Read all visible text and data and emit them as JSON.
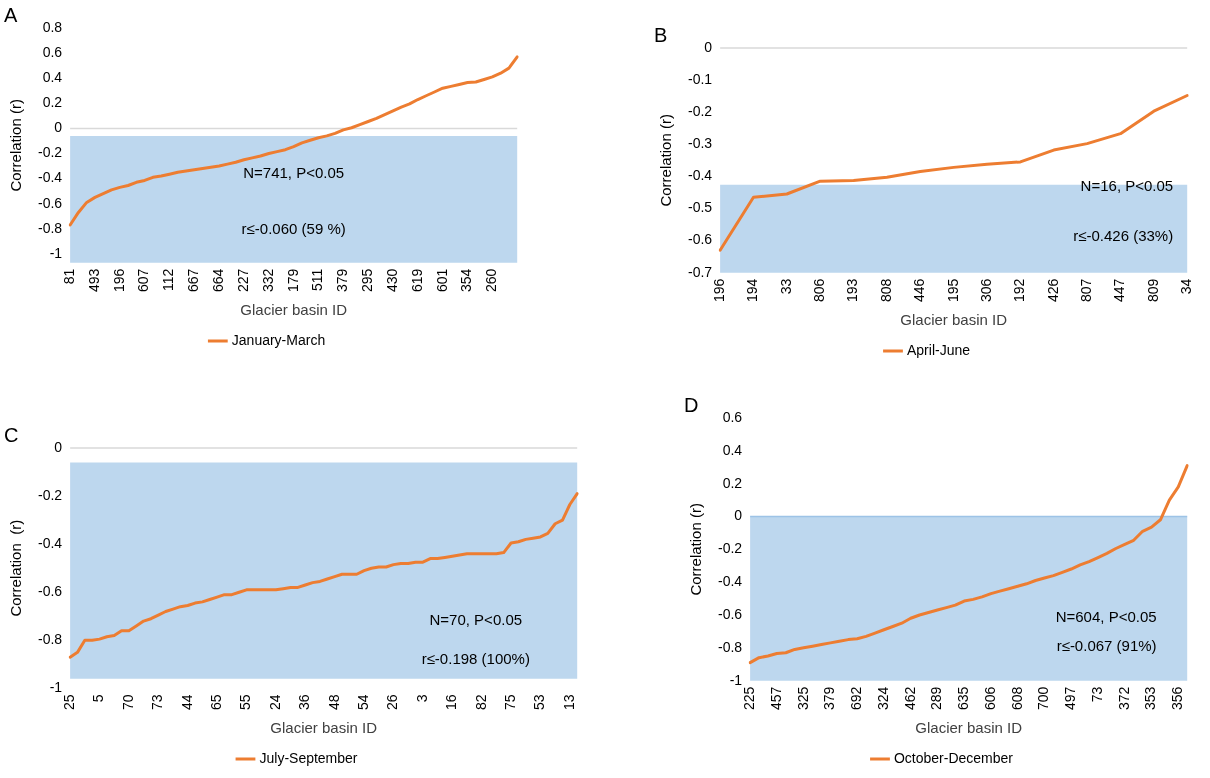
{
  "chart_data": [
    {
      "type": "line",
      "title": "A",
      "xlabel": "Glacier basin ID",
      "ylabel": "Correlation (r)",
      "categories": [
        "81",
        null,
        null,
        "493",
        null,
        null,
        "196",
        null,
        null,
        "607",
        null,
        null,
        "112",
        null,
        null,
        "667",
        null,
        null,
        "664",
        null,
        null,
        "227",
        null,
        null,
        "332",
        null,
        null,
        "179",
        null,
        null,
        "511",
        null,
        null,
        "379",
        null,
        null,
        "295",
        null,
        null,
        "430",
        null,
        null,
        "619",
        null,
        null,
        "601",
        null,
        null,
        "354",
        null,
        null,
        "260",
        null,
        null,
        null
      ],
      "series": [
        {
          "name": "January-March",
          "color": "#ed7d31",
          "values": [
            -0.77,
            -0.67,
            -0.59,
            -0.55,
            -0.52,
            -0.49,
            -0.47,
            -0.455,
            -0.43,
            -0.415,
            -0.39,
            -0.38,
            -0.365,
            -0.35,
            -0.34,
            -0.33,
            -0.32,
            -0.31,
            -0.3,
            -0.285,
            -0.27,
            -0.25,
            -0.235,
            -0.22,
            -0.2,
            -0.185,
            -0.17,
            -0.145,
            -0.115,
            -0.095,
            -0.075,
            -0.06,
            -0.04,
            -0.012,
            0.005,
            0.03,
            0.055,
            0.08,
            0.11,
            0.14,
            0.17,
            0.195,
            0.23,
            0.26,
            0.29,
            0.32,
            0.335,
            0.35,
            0.365,
            0.37,
            0.39,
            0.41,
            0.44,
            0.48,
            0.57
          ]
        }
      ],
      "ylim": [
        -1.07,
        0.8
      ],
      "yticks": [
        -1,
        -0.8,
        -0.6,
        -0.4,
        -0.2,
        0,
        0.2,
        0.4,
        0.6,
        0.8
      ],
      "bands": [
        {
          "axis": "y",
          "from": -1.07,
          "to": -0.06,
          "color": "#bdd7ee"
        }
      ],
      "ref_lines": [
        {
          "axis": "y",
          "value": 0,
          "color": "#d9d9d9"
        }
      ],
      "annotations": [
        "N=741, P<0.05",
        "r≤-0.060 (59 %)"
      ],
      "legend": "bottom",
      "grid": false,
      "marker": "none"
    },
    {
      "type": "line",
      "title": "B",
      "xlabel": "Glacier basin ID",
      "ylabel": "Correlation (r)",
      "categories": [
        "196",
        "194",
        "33",
        "806",
        "193",
        "808",
        "446",
        "195",
        "306",
        "192",
        "426",
        "807",
        "447",
        "809",
        "34"
      ],
      "series": [
        {
          "name": "April-June",
          "color": "#ed7d31",
          "values": [
            -0.63,
            -0.465,
            -0.455,
            -0.415,
            -0.413,
            -0.403,
            -0.385,
            -0.372,
            -0.362,
            -0.355,
            -0.318,
            -0.298,
            -0.267,
            -0.197,
            -0.148
          ]
        }
      ],
      "ylim": [
        -0.7,
        0
      ],
      "yticks": [
        -0.7,
        -0.6,
        -0.5,
        -0.4,
        -0.3,
        -0.2,
        -0.1,
        0
      ],
      "bands": [
        {
          "axis": "y",
          "from": -0.7,
          "to": -0.426,
          "color": "#bdd7ee"
        }
      ],
      "ref_lines": [
        {
          "axis": "y",
          "value": 0,
          "color": "#d9d9d9"
        }
      ],
      "annotations": [
        "N=16, P<0.05",
        "r≤-0.426 (33%)"
      ],
      "legend": "bottom",
      "grid": false,
      "marker": "none"
    },
    {
      "type": "line",
      "title": "C",
      "xlabel": "Glacier basin ID",
      "ylabel": "Correlation  (r)",
      "categories": [
        "25",
        null,
        null,
        null,
        "5",
        null,
        null,
        null,
        "70",
        null,
        null,
        null,
        "73",
        null,
        null,
        null,
        "44",
        null,
        null,
        null,
        "65",
        null,
        null,
        null,
        "55",
        null,
        null,
        null,
        "24",
        null,
        null,
        null,
        "36",
        null,
        null,
        null,
        "48",
        null,
        null,
        null,
        "54",
        null,
        null,
        null,
        "26",
        null,
        null,
        null,
        "3",
        null,
        null,
        null,
        "16",
        null,
        null,
        null,
        "82",
        null,
        null,
        null,
        "75",
        null,
        null,
        null,
        "53",
        null,
        null,
        null,
        "13",
        null
      ],
      "series": [
        {
          "name": "July-September",
          "color": "#ed7d31",
          "values": [
            -0.87,
            -0.85,
            -0.8,
            -0.8,
            -0.795,
            -0.785,
            -0.78,
            -0.76,
            -0.76,
            -0.74,
            -0.72,
            -0.71,
            -0.695,
            -0.68,
            -0.67,
            -0.66,
            -0.655,
            -0.645,
            -0.64,
            -0.63,
            -0.62,
            -0.61,
            -0.61,
            -0.6,
            -0.59,
            -0.59,
            -0.59,
            -0.59,
            -0.59,
            -0.585,
            -0.58,
            -0.58,
            -0.57,
            -0.56,
            -0.555,
            -0.545,
            -0.535,
            -0.525,
            -0.525,
            -0.525,
            -0.51,
            -0.5,
            -0.495,
            -0.495,
            -0.485,
            -0.48,
            -0.48,
            -0.475,
            -0.475,
            -0.46,
            -0.46,
            -0.455,
            -0.45,
            -0.445,
            -0.44,
            -0.44,
            -0.44,
            -0.44,
            -0.44,
            -0.435,
            -0.395,
            -0.39,
            -0.38,
            -0.375,
            -0.37,
            -0.355,
            -0.315,
            -0.3,
            -0.235,
            -0.19
          ]
        }
      ],
      "ylim": [
        -1,
        0
      ],
      "yticks": [
        -1,
        -0.8,
        -0.6,
        -0.4,
        -0.2,
        0
      ],
      "bands": [
        {
          "axis": "y",
          "from": -0.96,
          "to": -0.06,
          "color": "#bdd7ee"
        }
      ],
      "ref_lines": [
        {
          "axis": "y",
          "value": 0,
          "color": "#d9d9d9"
        }
      ],
      "annotations": [
        "N=70, P<0.05",
        "r≤-0.198 (100%)"
      ],
      "legend": "bottom",
      "grid": false,
      "marker": "none"
    },
    {
      "type": "line",
      "title": "D",
      "xlabel": "Glacier basin ID",
      "ylabel": "Correlation (r)",
      "categories": [
        "225",
        null,
        null,
        "457",
        null,
        null,
        "325",
        null,
        null,
        "379",
        null,
        null,
        "692",
        null,
        null,
        "324",
        null,
        null,
        "462",
        null,
        null,
        "289",
        null,
        null,
        "635",
        null,
        null,
        "606",
        null,
        null,
        "608",
        null,
        null,
        "700",
        null,
        null,
        "497",
        null,
        null,
        "73",
        null,
        null,
        "372",
        null,
        null,
        "353",
        null,
        null,
        "356",
        null
      ],
      "series": [
        {
          "name": "October-December",
          "color": "#ed7d31",
          "values": [
            -0.89,
            -0.86,
            -0.85,
            -0.835,
            -0.83,
            -0.81,
            -0.8,
            -0.79,
            -0.78,
            -0.77,
            -0.76,
            -0.75,
            -0.745,
            -0.73,
            -0.71,
            -0.69,
            -0.67,
            -0.65,
            -0.62,
            -0.6,
            -0.585,
            -0.57,
            -0.555,
            -0.54,
            -0.515,
            -0.505,
            -0.49,
            -0.47,
            -0.455,
            -0.44,
            -0.425,
            -0.41,
            -0.39,
            -0.375,
            -0.36,
            -0.34,
            -0.32,
            -0.295,
            -0.275,
            -0.25,
            -0.225,
            -0.195,
            -0.17,
            -0.145,
            -0.09,
            -0.065,
            -0.02,
            0.1,
            0.18,
            0.31
          ]
        }
      ],
      "ylim": [
        -1,
        0.6
      ],
      "yticks": [
        -1,
        -0.8,
        -0.6,
        -0.4,
        -0.2,
        0,
        0.2,
        0.4,
        0.6
      ],
      "bands": [
        {
          "axis": "y",
          "from": -1,
          "to": 0,
          "color": "#bdd7ee"
        }
      ],
      "ref_lines": [
        {
          "axis": "y",
          "value": 0,
          "color": "#9dc3e6"
        }
      ],
      "annotations": [
        "N=604, P<0.05",
        "r≤-0.067 (91%)"
      ],
      "legend": "bottom",
      "grid": false,
      "marker": "none"
    }
  ]
}
